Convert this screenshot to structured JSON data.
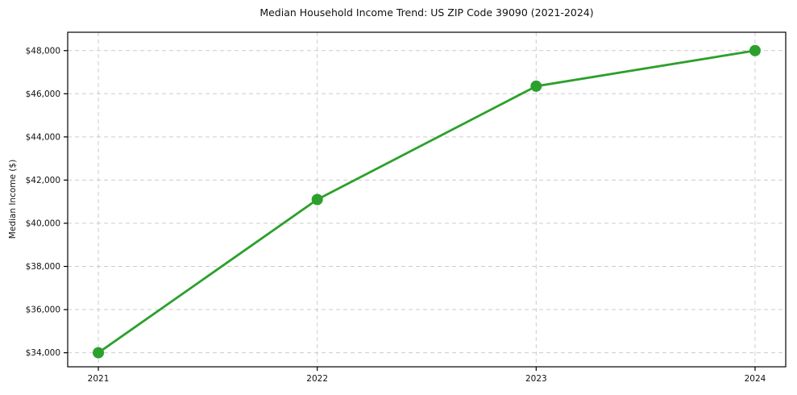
{
  "chart_data": {
    "type": "line",
    "title": "Median Household Income Trend: US ZIP Code 39090 (2021-2024)",
    "xlabel": "",
    "ylabel": "Median Income ($)",
    "x": [
      2021,
      2022,
      2023,
      2024
    ],
    "categories": [
      "2021",
      "2022",
      "2023",
      "2024"
    ],
    "series": [
      {
        "name": "Median Household Income",
        "values": [
          34000,
          41100,
          46350,
          48000
        ],
        "color": "#2ca02c"
      }
    ],
    "y_ticks": [
      34000,
      36000,
      38000,
      40000,
      42000,
      44000,
      46000,
      48000
    ],
    "y_tick_labels": [
      "$34,000",
      "$36,000",
      "$38,000",
      "$40,000",
      "$42,000",
      "$44,000",
      "$46,000",
      "$48,000"
    ],
    "xlim": [
      2020.86,
      2024.14
    ],
    "ylim": [
      33350,
      48850
    ],
    "grid": true,
    "grid_style": "dashed",
    "legend": false,
    "marker": "circle",
    "colors": {
      "line": "#2ca02c",
      "grid": "#cccccc",
      "axis": "#000000",
      "text": "#111111"
    }
  }
}
